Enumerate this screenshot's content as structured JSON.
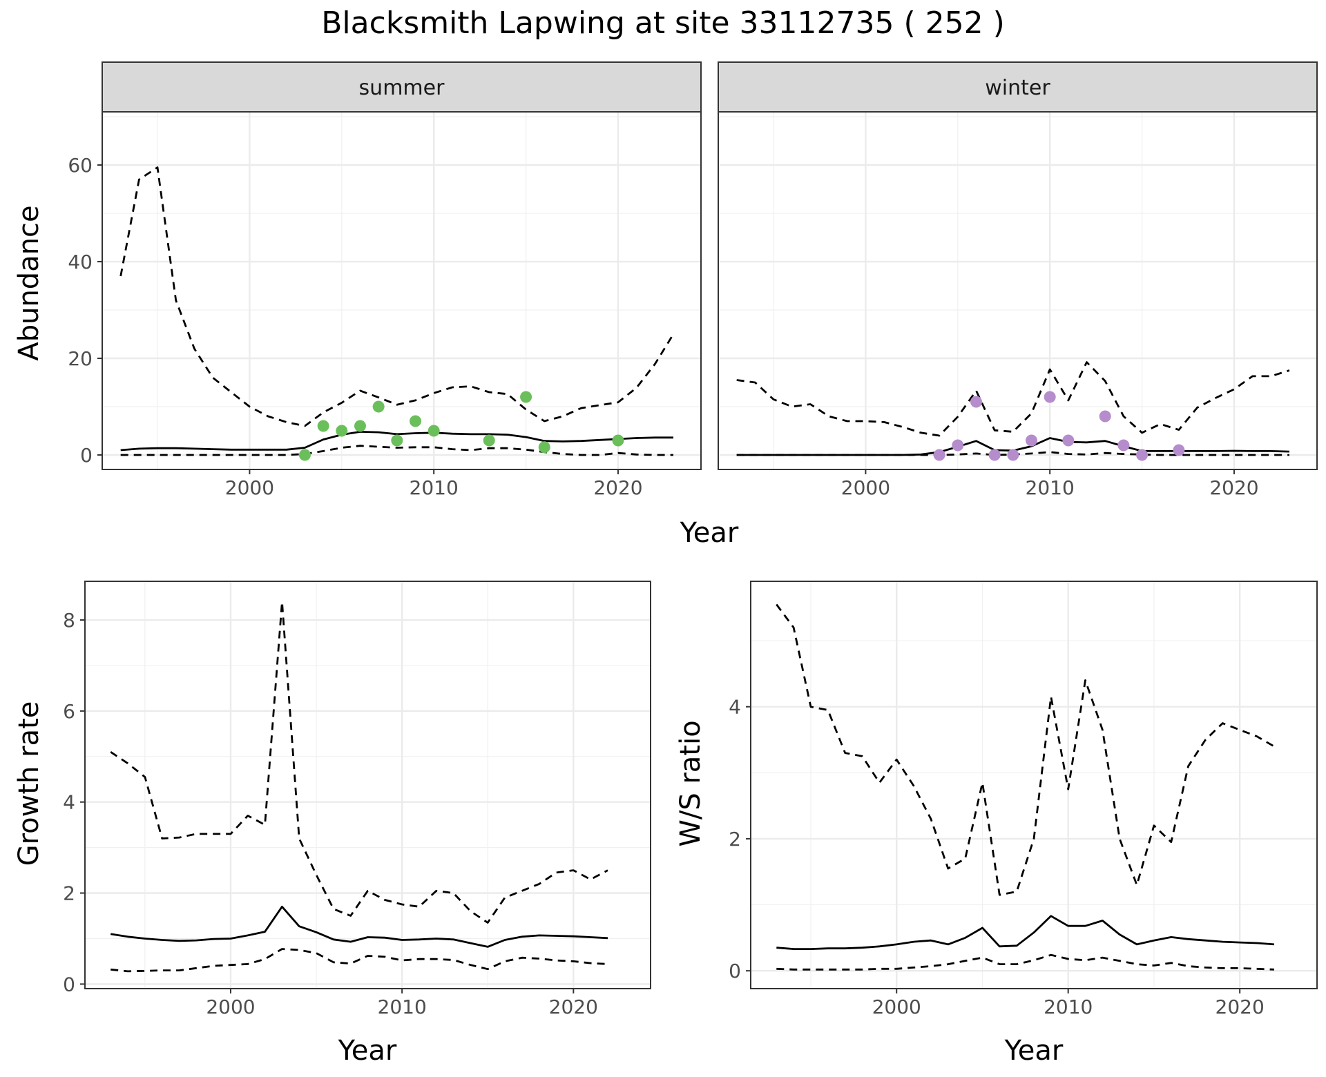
{
  "figure": {
    "title": "Blacksmith Lapwing at site 33112735 ( 252 )"
  },
  "chart_data": [
    {
      "type": "line",
      "panel": "abundance-summer",
      "facet": "summer",
      "xlabel": "Year",
      "ylabel": "Abundance",
      "xlim": [
        1992,
        2024.5
      ],
      "ylim": [
        -3,
        71
      ],
      "xticks": [
        2000,
        2010,
        2020
      ],
      "yticks": [
        0,
        20,
        40,
        60
      ],
      "grid": true,
      "points_color": "#6abf5a",
      "series": [
        {
          "role": "mean",
          "style": "solid",
          "x": [
            1993,
            1994,
            1995,
            1996,
            1997,
            1998,
            1999,
            2000,
            2001,
            2002,
            2003,
            2004,
            2005,
            2006,
            2007,
            2008,
            2009,
            2010,
            2011,
            2012,
            2013,
            2014,
            2015,
            2016,
            2017,
            2018,
            2019,
            2020,
            2021,
            2022,
            2023
          ],
          "y": [
            1,
            1.3,
            1.4,
            1.4,
            1.3,
            1.2,
            1.1,
            1.1,
            1.1,
            1.1,
            1.5,
            3.2,
            4.2,
            4.8,
            4.7,
            4.3,
            4.5,
            4.6,
            4.4,
            4.3,
            4.3,
            4.2,
            3.7,
            2.9,
            2.8,
            2.9,
            3.1,
            3.3,
            3.5,
            3.6,
            3.6
          ]
        },
        {
          "role": "upper",
          "style": "dashed",
          "x": [
            1993,
            1994,
            1995,
            1996,
            1997,
            1998,
            1999,
            2000,
            2001,
            2002,
            2003,
            2004,
            2005,
            2006,
            2007,
            2008,
            2009,
            2010,
            2011,
            2012,
            2013,
            2014,
            2015,
            2016,
            2017,
            2018,
            2019,
            2020,
            2021,
            2022,
            2023
          ],
          "y": [
            37,
            57,
            59.5,
            32,
            22,
            16,
            13,
            10,
            8,
            6.8,
            6,
            8.8,
            10.8,
            13.3,
            11.9,
            10.4,
            11.3,
            12.8,
            14,
            14.2,
            13,
            12.6,
            9.4,
            7,
            8,
            9.7,
            10.3,
            10.9,
            13.9,
            18.8,
            25
          ]
        },
        {
          "role": "lower",
          "style": "dashed",
          "x": [
            1993,
            1994,
            1995,
            1996,
            1997,
            1998,
            1999,
            2000,
            2001,
            2002,
            2003,
            2004,
            2005,
            2006,
            2007,
            2008,
            2009,
            2010,
            2011,
            2012,
            2013,
            2014,
            2015,
            2016,
            2017,
            2018,
            2019,
            2020,
            2021,
            2022,
            2023
          ],
          "y": [
            0,
            0,
            0,
            0,
            0,
            0,
            0,
            0,
            0,
            0,
            0.2,
            0.8,
            1.5,
            1.9,
            1.7,
            1.5,
            1.6,
            1.6,
            1.2,
            1,
            1.4,
            1.4,
            1.1,
            0.6,
            0.2,
            0,
            0,
            0.4,
            0.1,
            0,
            0
          ]
        },
        {
          "role": "observed",
          "style": "points",
          "x": [
            2003,
            2004,
            2005,
            2006,
            2007,
            2008,
            2009,
            2010,
            2013,
            2015,
            2016,
            2020
          ],
          "y": [
            0,
            6,
            5,
            6,
            10,
            3,
            7,
            5,
            3,
            12,
            1.6,
            3
          ]
        }
      ]
    },
    {
      "type": "line",
      "panel": "abundance-winter",
      "facet": "winter",
      "xlabel": "Year",
      "ylabel": "Abundance",
      "xlim": [
        1992,
        2024.5
      ],
      "ylim": [
        -3,
        71
      ],
      "xticks": [
        2000,
        2010,
        2020
      ],
      "yticks": [
        0,
        20,
        40,
        60
      ],
      "grid": true,
      "points_color": "#b58ccc",
      "series": [
        {
          "role": "mean",
          "style": "solid",
          "x": [
            1993,
            1994,
            1995,
            1996,
            1997,
            1998,
            1999,
            2000,
            2001,
            2002,
            2003,
            2004,
            2005,
            2006,
            2007,
            2008,
            2009,
            2010,
            2011,
            2012,
            2013,
            2014,
            2015,
            2016,
            2017,
            2018,
            2019,
            2020,
            2021,
            2022,
            2023
          ],
          "y": [
            0,
            0,
            0,
            0,
            0,
            0,
            0,
            0,
            0,
            0,
            0.1,
            0.6,
            1.7,
            2.9,
            1,
            0.9,
            1.8,
            3.5,
            2.7,
            2.6,
            2.9,
            1.8,
            0.8,
            0.8,
            0.8,
            0.8,
            0.8,
            0.85,
            0.8,
            0.8,
            0.7
          ]
        },
        {
          "role": "upper",
          "style": "dashed",
          "x": [
            1993,
            1994,
            1995,
            1996,
            1997,
            1998,
            1999,
            2000,
            2001,
            2002,
            2003,
            2004,
            2005,
            2006,
            2007,
            2008,
            2009,
            2010,
            2011,
            2012,
            2013,
            2014,
            2015,
            2016,
            2017,
            2018,
            2019,
            2020,
            2021,
            2022,
            2023
          ],
          "y": [
            15.5,
            15,
            11.5,
            10,
            10.5,
            8,
            7,
            7,
            6.8,
            5.8,
            4.6,
            4,
            7.9,
            13.3,
            5.1,
            4.8,
            8.6,
            17.7,
            11.3,
            19.2,
            15.3,
            8,
            4.6,
            6.4,
            5.2,
            9.8,
            11.8,
            13.6,
            16.3,
            16.3,
            17.5
          ]
        },
        {
          "role": "lower",
          "style": "dashed",
          "x": [
            1993,
            1994,
            1995,
            1996,
            1997,
            1998,
            1999,
            2000,
            2001,
            2002,
            2003,
            2004,
            2005,
            2006,
            2007,
            2008,
            2009,
            2010,
            2011,
            2012,
            2013,
            2014,
            2015,
            2016,
            2017,
            2018,
            2019,
            2020,
            2021,
            2022,
            2023
          ],
          "y": [
            0,
            0,
            0,
            0,
            0,
            0,
            0,
            0,
            0,
            0,
            0,
            0,
            0.1,
            0.3,
            0,
            0.1,
            0.3,
            0.6,
            0.2,
            0.1,
            0.4,
            0.2,
            0.1,
            0,
            0,
            0,
            0,
            0,
            0,
            0,
            0
          ]
        },
        {
          "role": "observed",
          "style": "points",
          "x": [
            2004,
            2005,
            2006,
            2007,
            2008,
            2009,
            2010,
            2011,
            2013,
            2014,
            2015,
            2017
          ],
          "y": [
            0,
            2,
            11,
            0,
            0,
            3,
            12,
            3,
            8,
            2,
            0,
            1
          ]
        }
      ]
    },
    {
      "type": "line",
      "panel": "growth-rate",
      "xlabel": "Year",
      "ylabel": "Growth rate",
      "xlim": [
        1991.5,
        2024.5
      ],
      "ylim": [
        -0.1,
        8.85
      ],
      "xticks": [
        2000,
        2010,
        2020
      ],
      "yticks": [
        0,
        2,
        4,
        6,
        8
      ],
      "grid": true,
      "series": [
        {
          "role": "mean",
          "style": "solid",
          "x": [
            1993,
            1994,
            1995,
            1996,
            1997,
            1998,
            1999,
            2000,
            2001,
            2002,
            2003,
            2004,
            2005,
            2006,
            2007,
            2008,
            2009,
            2010,
            2011,
            2012,
            2013,
            2014,
            2015,
            2016,
            2017,
            2018,
            2019,
            2020,
            2021,
            2022
          ],
          "y": [
            1.1,
            1.04,
            1,
            0.97,
            0.95,
            0.96,
            0.99,
            1,
            1.07,
            1.15,
            1.7,
            1.27,
            1.14,
            0.98,
            0.93,
            1.03,
            1.02,
            0.97,
            0.98,
            1,
            0.98,
            0.9,
            0.82,
            0.97,
            1.04,
            1.07,
            1.06,
            1.05,
            1.03,
            1.01
          ]
        },
        {
          "role": "upper",
          "style": "dashed",
          "x": [
            1993,
            1994,
            1995,
            1996,
            1997,
            1998,
            1999,
            2000,
            2001,
            2002,
            2003,
            2004,
            2005,
            2006,
            2007,
            2008,
            2009,
            2010,
            2011,
            2012,
            2013,
            2014,
            2015,
            2016,
            2017,
            2018,
            2019,
            2020,
            2021,
            2022
          ],
          "y": [
            5.1,
            4.85,
            4.55,
            3.2,
            3.22,
            3.3,
            3.3,
            3.3,
            3.7,
            3.5,
            8.4,
            3.2,
            2.4,
            1.65,
            1.5,
            2.05,
            1.85,
            1.75,
            1.7,
            2.05,
            2,
            1.6,
            1.35,
            1.9,
            2.05,
            2.2,
            2.45,
            2.5,
            2.3,
            2.5
          ]
        },
        {
          "role": "lower",
          "style": "dashed",
          "x": [
            1993,
            1994,
            1995,
            1996,
            1997,
            1998,
            1999,
            2000,
            2001,
            2002,
            2003,
            2004,
            2005,
            2006,
            2007,
            2008,
            2009,
            2010,
            2011,
            2012,
            2013,
            2014,
            2015,
            2016,
            2017,
            2018,
            2019,
            2020,
            2021,
            2022
          ],
          "y": [
            0.32,
            0.28,
            0.29,
            0.3,
            0.3,
            0.35,
            0.4,
            0.42,
            0.44,
            0.55,
            0.77,
            0.75,
            0.68,
            0.48,
            0.45,
            0.62,
            0.6,
            0.52,
            0.55,
            0.55,
            0.53,
            0.42,
            0.33,
            0.5,
            0.58,
            0.56,
            0.52,
            0.5,
            0.46,
            0.44
          ]
        }
      ]
    },
    {
      "type": "line",
      "panel": "ws-ratio",
      "xlabel": "Year",
      "ylabel": "W/S ratio",
      "xlim": [
        1991.5,
        2024.5
      ],
      "ylim": [
        -0.27,
        5.9
      ],
      "xticks": [
        2000,
        2010,
        2020
      ],
      "yticks": [
        0,
        2,
        4
      ],
      "grid": true,
      "series": [
        {
          "role": "mean",
          "style": "solid",
          "x": [
            1993,
            1994,
            1995,
            1996,
            1997,
            1998,
            1999,
            2000,
            2001,
            2002,
            2003,
            2004,
            2005,
            2006,
            2007,
            2008,
            2009,
            2010,
            2011,
            2012,
            2013,
            2014,
            2015,
            2016,
            2017,
            2018,
            2019,
            2020,
            2021,
            2022
          ],
          "y": [
            0.35,
            0.33,
            0.33,
            0.34,
            0.34,
            0.35,
            0.37,
            0.4,
            0.44,
            0.46,
            0.4,
            0.5,
            0.65,
            0.37,
            0.38,
            0.58,
            0.83,
            0.68,
            0.68,
            0.76,
            0.55,
            0.4,
            0.46,
            0.51,
            0.48,
            0.46,
            0.44,
            0.43,
            0.42,
            0.4
          ]
        },
        {
          "role": "upper",
          "style": "dashed",
          "x": [
            1993,
            1994,
            1995,
            1996,
            1997,
            1998,
            1999,
            2000,
            2001,
            2002,
            2003,
            2004,
            2005,
            2006,
            2007,
            2008,
            2009,
            2010,
            2011,
            2012,
            2013,
            2014,
            2015,
            2016,
            2017,
            2018,
            2019,
            2020,
            2021,
            2022
          ],
          "y": [
            5.55,
            5.2,
            4,
            3.95,
            3.3,
            3.25,
            2.85,
            3.2,
            2.8,
            2.3,
            1.55,
            1.7,
            2.85,
            1.15,
            1.2,
            2,
            4.15,
            2.75,
            4.4,
            3.65,
            2,
            1.3,
            2.2,
            1.95,
            3.1,
            3.5,
            3.75,
            3.65,
            3.55,
            3.4
          ]
        },
        {
          "role": "lower",
          "style": "dashed",
          "x": [
            1993,
            1994,
            1995,
            1996,
            1997,
            1998,
            1999,
            2000,
            2001,
            2002,
            2003,
            2004,
            2005,
            2006,
            2007,
            2008,
            2009,
            2010,
            2011,
            2012,
            2013,
            2014,
            2015,
            2016,
            2017,
            2018,
            2019,
            2020,
            2021,
            2022
          ],
          "y": [
            0.03,
            0.02,
            0.02,
            0.02,
            0.02,
            0.02,
            0.03,
            0.03,
            0.05,
            0.07,
            0.1,
            0.15,
            0.2,
            0.1,
            0.1,
            0.16,
            0.24,
            0.18,
            0.16,
            0.2,
            0.15,
            0.1,
            0.08,
            0.12,
            0.07,
            0.05,
            0.04,
            0.04,
            0.03,
            0.02
          ]
        }
      ]
    }
  ]
}
